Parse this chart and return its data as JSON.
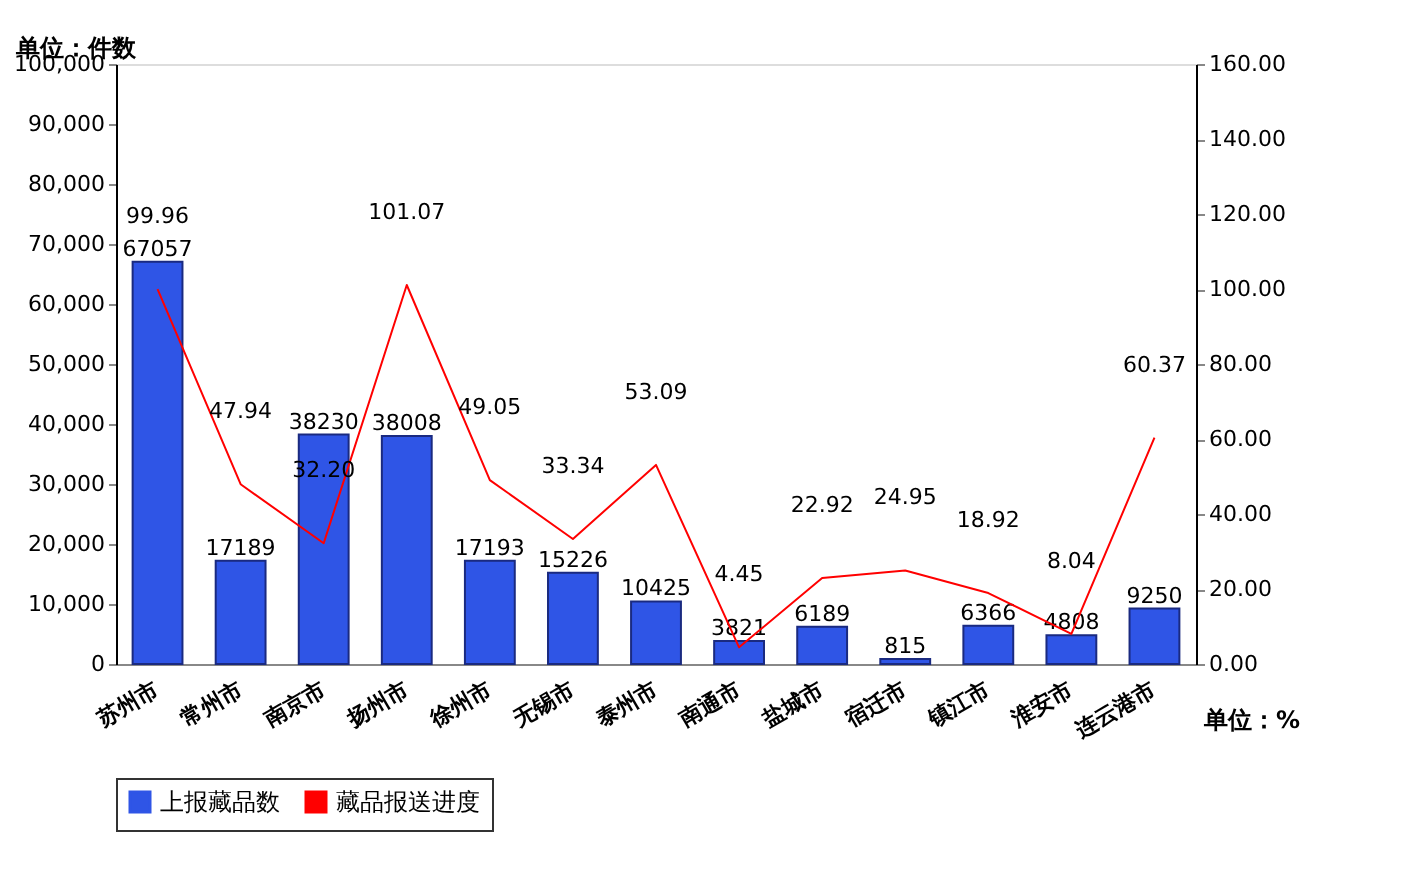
{
  "chart_data": {
    "type": "bar",
    "categories": [
      "苏州市",
      "常州市",
      "南京市",
      "扬州市",
      "徐州市",
      "无锡市",
      "泰州市",
      "南通市",
      "盐城市",
      "宿迁市",
      "镇江市",
      "淮安市",
      "连云港市"
    ],
    "series": [
      {
        "name": "上报藏品数",
        "color": "#2f55e6",
        "values": [
          67057,
          17189,
          38230,
          38008,
          17193,
          15226,
          10425,
          3821,
          6189,
          815,
          6366,
          4808,
          9250
        ],
        "value_labels": [
          "67057",
          "17189",
          "38230",
          "38008",
          "17193",
          "15226",
          "10425",
          "3821",
          "6189",
          "815",
          "6366",
          "4808",
          "9250"
        ]
      },
      {
        "name": "藏品报送进度",
        "type": "line",
        "axis": "y2",
        "color": "#ff0000",
        "values": [
          99.96,
          47.94,
          32.2,
          101.07,
          49.05,
          33.34,
          53.09,
          4.45,
          22.92,
          24.95,
          18.92,
          8.04,
          60.37
        ],
        "value_labels": [
          "99.96",
          "47.94",
          "32.20",
          "101.07",
          "49.05",
          "33.34",
          "53.09",
          "4.45",
          "22.92",
          "24.95",
          "18.92",
          "8.04",
          "60.37"
        ]
      }
    ],
    "ylim": [
      0,
      100000
    ],
    "yticks": [
      0,
      {
        "value": 10000,
        "label": "10,000"
      },
      {
        "value": 20000,
        "label": "20,000"
      },
      {
        "value": 30000,
        "label": "30,000"
      },
      {
        "value": 40000,
        "label": "40,000"
      },
      {
        "value": 50000,
        "label": "50,000"
      },
      {
        "value": 60000,
        "label": "60,000"
      },
      {
        "value": 70000,
        "label": "70,000"
      },
      {
        "value": 80000,
        "label": "80,000"
      },
      {
        "value": 90000,
        "label": "90,000"
      },
      {
        "value": 100000,
        "label": "100,000"
      }
    ],
    "y2lim": [
      0,
      160
    ],
    "y2ticks": [
      {
        "value": 0,
        "label": "0.00"
      },
      {
        "value": 20,
        "label": "20.00"
      },
      {
        "value": 40,
        "label": "40.00"
      },
      {
        "value": 60,
        "label": "60.00"
      },
      {
        "value": 80,
        "label": "80.00"
      },
      {
        "value": 100,
        "label": "100.00"
      },
      {
        "value": 120,
        "label": "120.00"
      },
      {
        "value": 140,
        "label": "140.00"
      },
      {
        "value": 160,
        "label": "160.00"
      }
    ],
    "annotations": [
      "单位：件数",
      "单位：%"
    ],
    "legend": "bottom",
    "grid": false
  }
}
